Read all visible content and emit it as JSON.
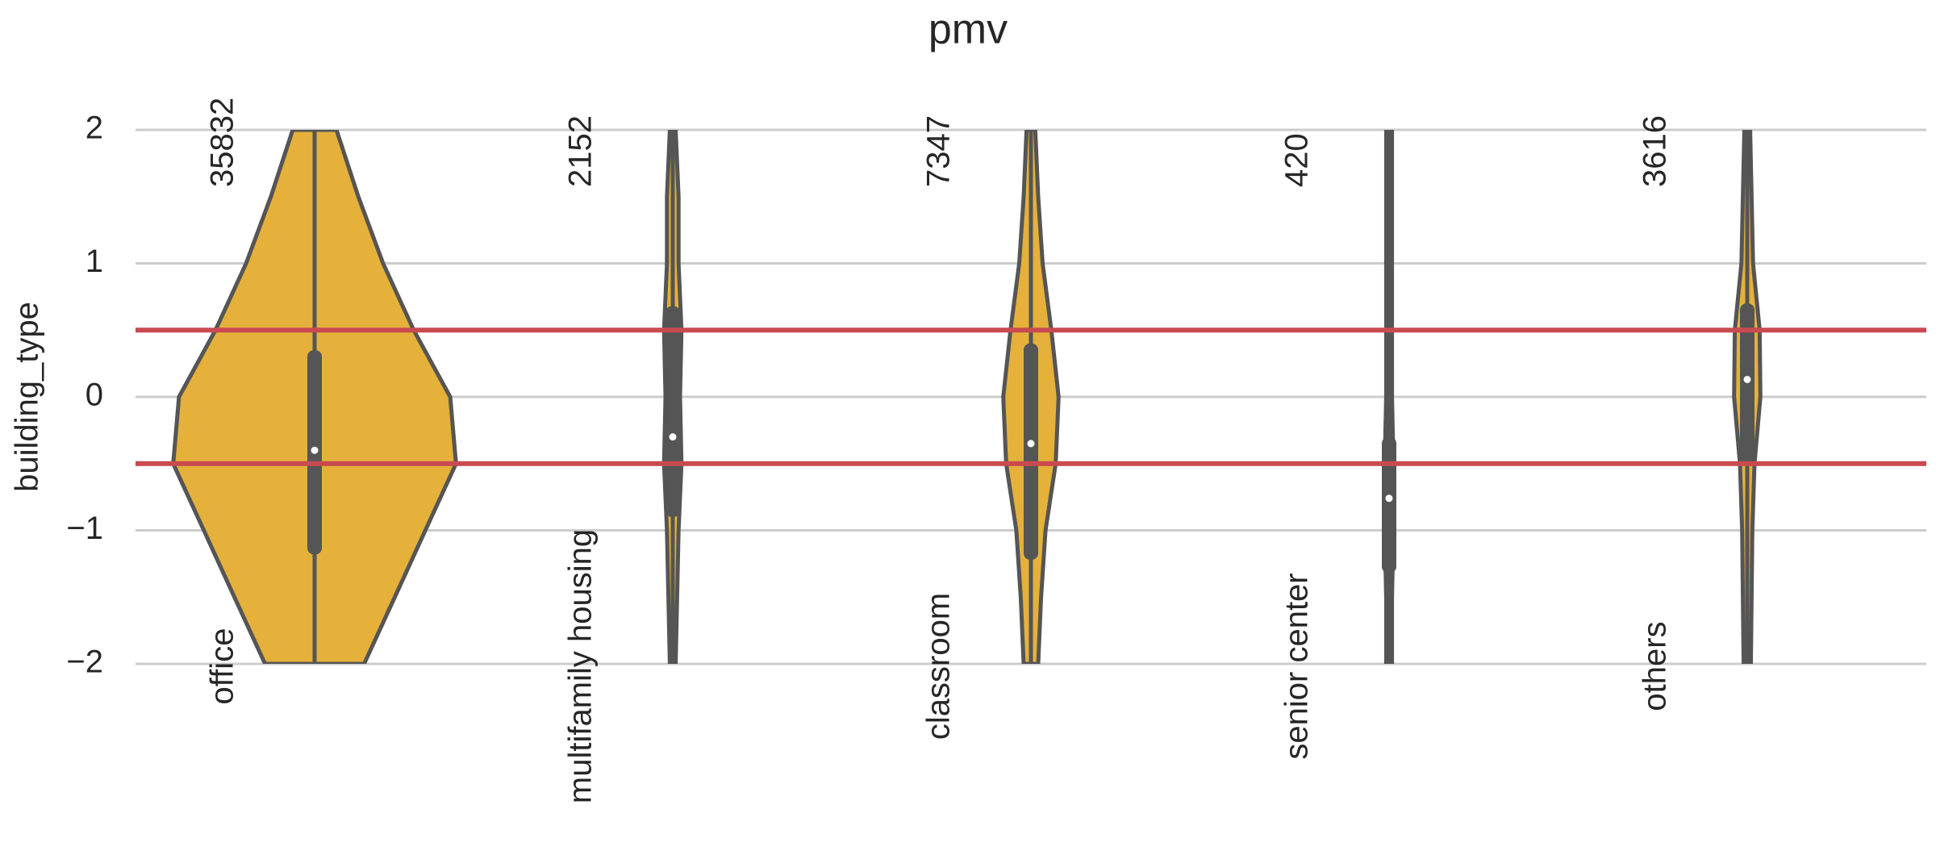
{
  "chart_data": {
    "type": "violin",
    "title": "pmv",
    "y_label": "building_type",
    "categories": [
      "office",
      "multifamily housing",
      "classroom",
      "senior center",
      "others"
    ],
    "counts": [
      35832,
      2152,
      7347,
      420,
      3616
    ],
    "medians": [
      -0.4,
      -0.3,
      -0.35,
      -0.76,
      0.13
    ],
    "q1": [
      -1.18,
      -0.9,
      -1.22,
      -1.32,
      -0.5
    ],
    "q3": [
      0.35,
      0.68,
      0.4,
      -0.3,
      0.7
    ],
    "density_y": [
      -2,
      -1.5,
      -1,
      -0.5,
      0,
      0.5,
      1,
      1.5,
      2
    ],
    "density": [
      [
        0.34,
        0.55,
        0.76,
        0.97,
        0.93,
        0.68,
        0.47,
        0.3,
        0.15
      ],
      [
        0.02,
        0.03,
        0.04,
        0.06,
        0.05,
        0.06,
        0.04,
        0.04,
        0.02
      ],
      [
        0.05,
        0.07,
        0.1,
        0.17,
        0.19,
        0.14,
        0.08,
        0.05,
        0.03
      ],
      [
        0.02,
        0.02,
        0.03,
        0.03,
        0.02,
        0.02,
        0.02,
        0.02,
        0.02
      ],
      [
        0.025,
        0.03,
        0.035,
        0.05,
        0.09,
        0.085,
        0.04,
        0.03,
        0.02
      ]
    ],
    "color": "#e5b13a",
    "hlines": [
      0.5,
      -0.5
    ],
    "hline_color": "#c94a50",
    "ylim": [
      -2,
      2
    ],
    "yticks": [
      {
        "value": -2,
        "label": "−2"
      },
      {
        "value": -1,
        "label": "−1"
      },
      0,
      1,
      2
    ],
    "grid": true
  }
}
